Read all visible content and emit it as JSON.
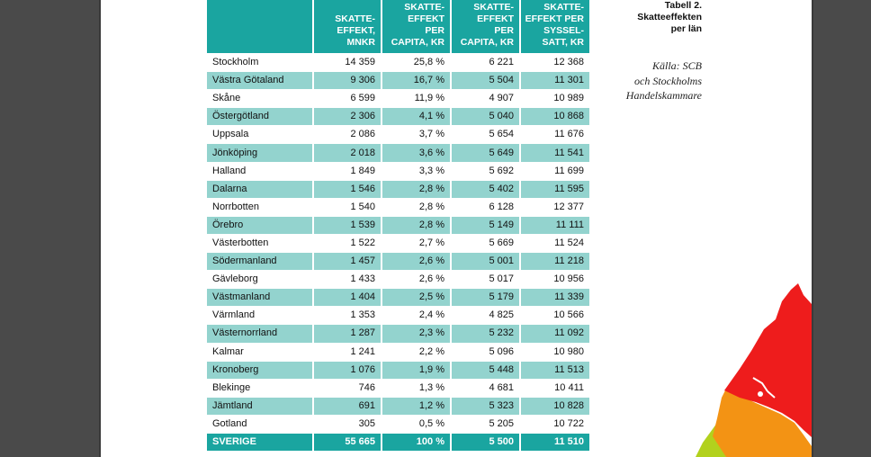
{
  "table": {
    "headers": [
      "",
      "SKATTE-\nEFFEKT,\nMNKR",
      "SKATTE-\nEFFEKT PER\nCAPITA, KR",
      "SKATTE-\nEFFEKT PER\nCAPITA, KR",
      "SKATTE-\nEFFEKT PER\nSYSSEL-\nSATT, KR"
    ],
    "rows": [
      [
        "Stockholm",
        "14 359",
        "25,8 %",
        "6 221",
        "12 368"
      ],
      [
        "Västra Götaland",
        "9 306",
        "16,7 %",
        "5 504",
        "11 301"
      ],
      [
        "Skåne",
        "6 599",
        "11,9 %",
        "4 907",
        "10 989"
      ],
      [
        "Östergötland",
        "2 306",
        "4,1 %",
        "5 040",
        "10 868"
      ],
      [
        "Uppsala",
        "2 086",
        "3,7 %",
        "5 654",
        "11 676"
      ],
      [
        "Jönköping",
        "2 018",
        "3,6 %",
        "5 649",
        "11 541"
      ],
      [
        "Halland",
        "1 849",
        "3,3 %",
        "5 692",
        "11 699"
      ],
      [
        "Dalarna",
        "1 546",
        "2,8 %",
        "5 402",
        "11 595"
      ],
      [
        "Norrbotten",
        "1 540",
        "2,8 %",
        "6 128",
        "12 377"
      ],
      [
        "Örebro",
        "1 539",
        "2,8 %",
        "5 149",
        "11 111"
      ],
      [
        "Västerbotten",
        "1 522",
        "2,7 %",
        "5 669",
        "11 524"
      ],
      [
        "Södermanland",
        "1 457",
        "2,6 %",
        "5 001",
        "11 218"
      ],
      [
        "Gävleborg",
        "1 433",
        "2,6 %",
        "5 017",
        "10 956"
      ],
      [
        "Västmanland",
        "1 404",
        "2,5 %",
        "5 179",
        "11 339"
      ],
      [
        "Värmland",
        "1 353",
        "2,4 %",
        "4 825",
        "10 566"
      ],
      [
        "Västernorrland",
        "1 287",
        "2,3 %",
        "5 232",
        "11 092"
      ],
      [
        "Kalmar",
        "1 241",
        "2,2 %",
        "5 096",
        "10 980"
      ],
      [
        "Kronoberg",
        "1 076",
        "1,9 %",
        "5 448",
        "11 513"
      ],
      [
        "Blekinge",
        "746",
        "1,3 %",
        "4 681",
        "10 411"
      ],
      [
        "Jämtland",
        "691",
        "1,2 %",
        "5 323",
        "10 828"
      ],
      [
        "Gotland",
        "305",
        "0,5 %",
        "5 205",
        "10 722"
      ]
    ],
    "total": [
      "SVERIGE",
      "55 665",
      "100 %",
      "5 500",
      "11 510"
    ]
  },
  "caption": {
    "line1": "Tabell 2.",
    "line2": "Skatteeffekten",
    "line3": "per län"
  },
  "source": {
    "line1": "Källa: SCB",
    "line2": "och Stockholms",
    "line3": "Handelskammare"
  },
  "colors": {
    "header_bg": "#1aa5a0",
    "alt_row_bg": "#93d3ce",
    "map_red": "#ee1c1c",
    "map_orange": "#f39314",
    "map_green": "#b2d11d"
  }
}
